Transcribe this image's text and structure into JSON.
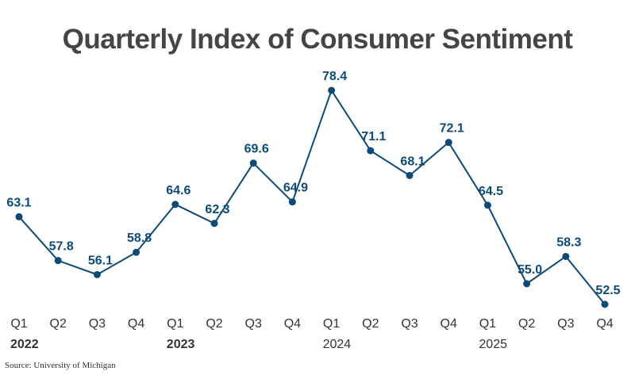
{
  "chart_data": {
    "type": "line",
    "title": "Quarterly Index of Consumer Sentiment",
    "categories": [
      "Q1",
      "Q2",
      "Q3",
      "Q4",
      "Q1",
      "Q2",
      "Q3",
      "Q4",
      "Q1",
      "Q2",
      "Q3",
      "Q4",
      "Q1",
      "Q2",
      "Q3",
      "Q4"
    ],
    "years": [
      "2022",
      "2023",
      "2024",
      "2025"
    ],
    "values": [
      63.1,
      57.8,
      56.1,
      58.8,
      64.6,
      62.3,
      69.6,
      64.9,
      78.4,
      71.1,
      68.1,
      72.1,
      64.5,
      55.0,
      58.3,
      52.5
    ],
    "value_labels": [
      "63.1",
      "57.8",
      "56.1",
      "58.8",
      "64.6",
      "62.3",
      "69.6",
      "64.9",
      "78.4",
      "71.1",
      "68.1",
      "72.1",
      "64.5",
      "55.0",
      "58.3",
      "52.5"
    ],
    "grid": false,
    "legend": "none",
    "color": "#0d4a75",
    "source": "Source: University of Michigan"
  }
}
